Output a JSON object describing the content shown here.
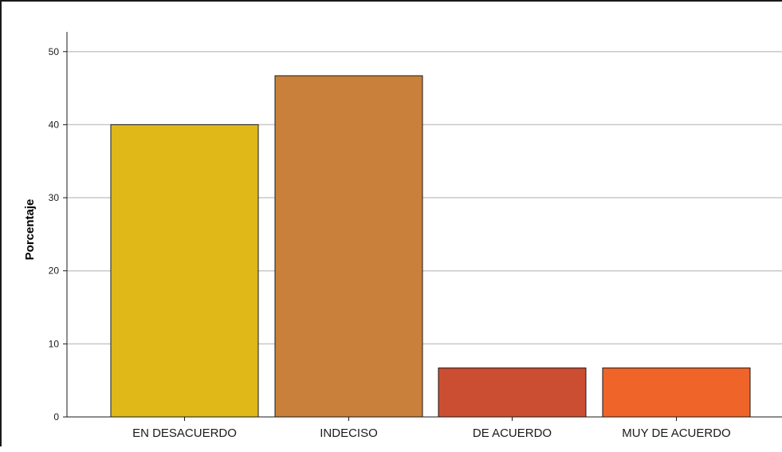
{
  "chart_data": {
    "type": "bar",
    "categories": [
      "EN DESACUERDO",
      "INDECISO",
      "DE ACUERDO",
      "MUY DE ACUERDO"
    ],
    "values": [
      40.0,
      46.7,
      6.7,
      6.7
    ],
    "colors": [
      "#e0b818",
      "#c9803a",
      "#cb4e32",
      "#ef6428"
    ],
    "title": "",
    "xlabel": "",
    "ylabel": "Porcentaje",
    "ylim": [
      0,
      52
    ],
    "yticks": [
      0,
      10,
      20,
      30,
      40,
      50
    ],
    "grid": true,
    "legend": "none",
    "bar_border_color": "#1a1a1a",
    "grid_color": "#c8c8c8"
  }
}
